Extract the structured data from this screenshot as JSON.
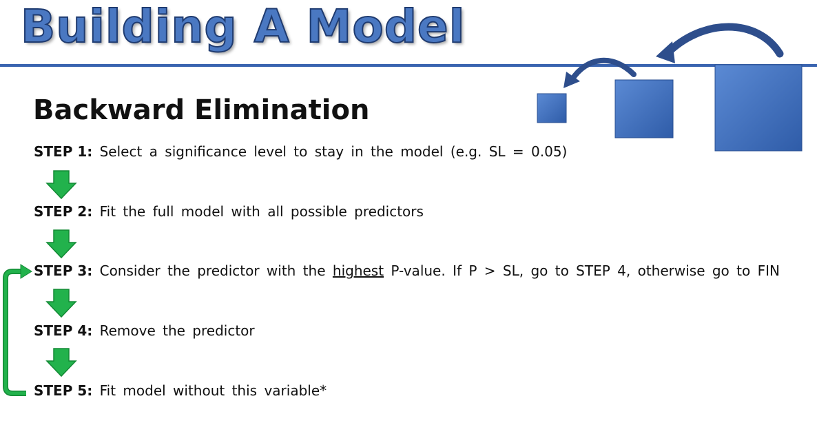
{
  "header": {
    "title": "Building A Model"
  },
  "section": {
    "title": "Backward Elimination"
  },
  "steps": [
    {
      "label": "STEP 1:",
      "text": "Select a significance level to stay in the model (e.g. SL = 0.05)"
    },
    {
      "label": "STEP 2:",
      "text": "Fit the full model with all possible predictors"
    },
    {
      "label": "STEP 3:",
      "text_before": "Consider the predictor with the",
      "emphasis": "highest",
      "text_after": "P-value. If P > SL, go to STEP 4, otherwise go to FIN"
    },
    {
      "label": "STEP 4:",
      "text": "Remove the predictor"
    },
    {
      "label": "STEP 5:",
      "text": "Fit model without this variable*"
    }
  ],
  "colors": {
    "title_fill": "#4a78c2",
    "rule": "#3a64b0",
    "arrow_green": "#22b24c",
    "box_blue": "#3f72c0"
  },
  "icons": [
    "down-arrow-icon",
    "loop-back-arrow-icon",
    "curved-arrow-icon"
  ]
}
